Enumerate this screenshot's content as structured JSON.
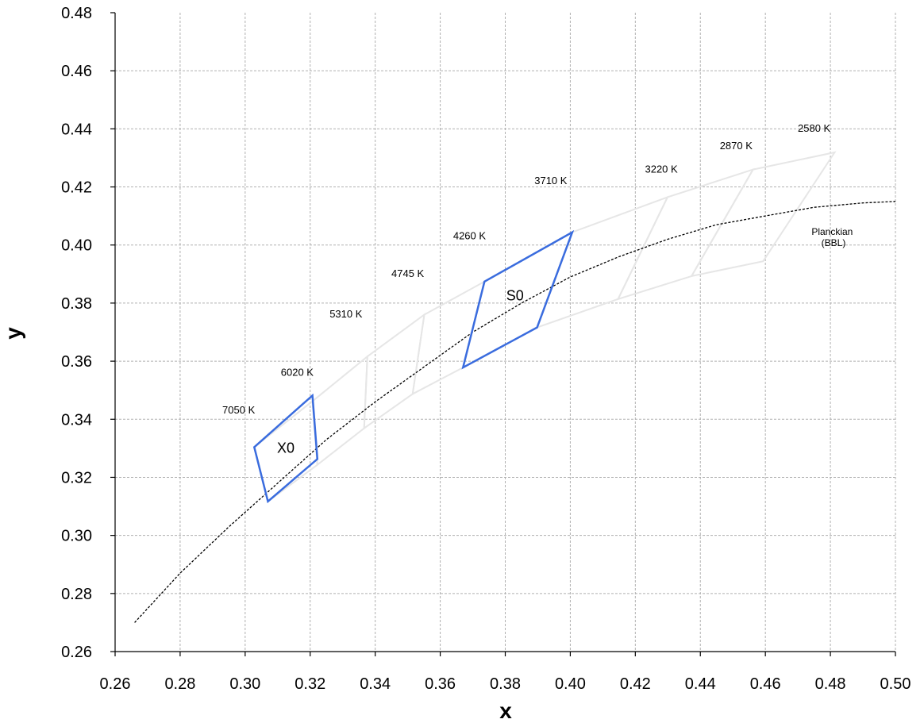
{
  "chart_data": {
    "type": "scatter",
    "xlabel": "x",
    "ylabel": "y",
    "xlim": [
      0.26,
      0.5
    ],
    "ylim": [
      0.26,
      0.48
    ],
    "xticks": [
      "0.26",
      "0.28",
      "0.30",
      "0.32",
      "0.34",
      "0.36",
      "0.38",
      "0.40",
      "0.42",
      "0.44",
      "0.46",
      "0.48",
      "0.50"
    ],
    "yticks": [
      "0.26",
      "0.28",
      "0.30",
      "0.32",
      "0.34",
      "0.36",
      "0.38",
      "0.40",
      "0.42",
      "0.44",
      "0.46",
      "0.48"
    ],
    "grid": true,
    "colors": {
      "ansi_quadrangles": "#e6e6e6",
      "highlight": "#3a6cde",
      "planckian": "#000000",
      "grid": "#b0b0b0"
    },
    "planckian_locus": {
      "label_line1": "Planckian",
      "label_line2": "(BBL)",
      "points": [
        [
          0.266,
          0.27
        ],
        [
          0.28,
          0.287
        ],
        [
          0.295,
          0.303
        ],
        [
          0.31,
          0.318
        ],
        [
          0.325,
          0.333
        ],
        [
          0.34,
          0.346
        ],
        [
          0.355,
          0.358
        ],
        [
          0.37,
          0.37
        ],
        [
          0.385,
          0.38
        ],
        [
          0.4,
          0.389
        ],
        [
          0.415,
          0.396
        ],
        [
          0.43,
          0.402
        ],
        [
          0.445,
          0.407
        ],
        [
          0.46,
          0.41
        ],
        [
          0.475,
          0.413
        ],
        [
          0.49,
          0.4145
        ],
        [
          0.5,
          0.415
        ]
      ]
    },
    "cct_labels": [
      {
        "text": "7050 K",
        "x": 0.298,
        "y": 0.342
      },
      {
        "text": "6020 K",
        "x": 0.316,
        "y": 0.355
      },
      {
        "text": "5310 K",
        "x": 0.331,
        "y": 0.375
      },
      {
        "text": "4745 K",
        "x": 0.35,
        "y": 0.389
      },
      {
        "text": "4260 K",
        "x": 0.369,
        "y": 0.402
      },
      {
        "text": "3710 K",
        "x": 0.394,
        "y": 0.421
      },
      {
        "text": "3220 K",
        "x": 0.428,
        "y": 0.425
      },
      {
        "text": "2870 K",
        "x": 0.451,
        "y": 0.433
      },
      {
        "text": "2580 K",
        "x": 0.475,
        "y": 0.439
      }
    ],
    "ansi_quadrangles": [
      [
        [
          0.307,
          0.3117
        ],
        [
          0.3028,
          0.3304
        ],
        [
          0.3207,
          0.3462
        ],
        [
          0.3222,
          0.3243
        ]
      ],
      [
        [
          0.3222,
          0.3243
        ],
        [
          0.3207,
          0.3462
        ],
        [
          0.3376,
          0.3616
        ],
        [
          0.3366,
          0.3369
        ]
      ],
      [
        [
          0.3366,
          0.3369
        ],
        [
          0.3376,
          0.3616
        ],
        [
          0.3551,
          0.376
        ],
        [
          0.3515,
          0.3487
        ]
      ],
      [
        [
          0.3515,
          0.3487
        ],
        [
          0.3551,
          0.376
        ],
        [
          0.3736,
          0.3874
        ],
        [
          0.367,
          0.3578
        ]
      ],
      [
        [
          0.367,
          0.3578
        ],
        [
          0.3736,
          0.3874
        ],
        [
          0.4006,
          0.4044
        ],
        [
          0.3898,
          0.3716
        ]
      ],
      [
        [
          0.3898,
          0.3716
        ],
        [
          0.4006,
          0.4044
        ],
        [
          0.4299,
          0.4165
        ],
        [
          0.4147,
          0.3814
        ]
      ],
      [
        [
          0.4147,
          0.3814
        ],
        [
          0.4299,
          0.4165
        ],
        [
          0.4562,
          0.426
        ],
        [
          0.4373,
          0.3893
        ]
      ],
      [
        [
          0.4373,
          0.3893
        ],
        [
          0.4562,
          0.426
        ],
        [
          0.4813,
          0.4319
        ],
        [
          0.4593,
          0.3944
        ]
      ]
    ],
    "highlight_regions": [
      {
        "name": "X0",
        "label_x": 0.3125,
        "label_y": 0.3285,
        "points": [
          [
            0.307,
            0.3117
          ],
          [
            0.3028,
            0.3304
          ],
          [
            0.3207,
            0.3482
          ],
          [
            0.3222,
            0.3263
          ]
        ]
      },
      {
        "name": "S0",
        "label_x": 0.383,
        "label_y": 0.381,
        "points": [
          [
            0.367,
            0.3578
          ],
          [
            0.3736,
            0.3874
          ],
          [
            0.4006,
            0.4044
          ],
          [
            0.3898,
            0.3716
          ]
        ]
      }
    ]
  }
}
